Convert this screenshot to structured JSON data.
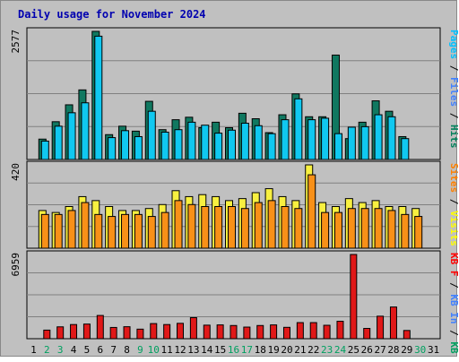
{
  "chart_data": {
    "type": "bar",
    "title": "Daily usage for November 2024",
    "days": [
      "1",
      "2",
      "3",
      "4",
      "5",
      "6",
      "7",
      "8",
      "9",
      "10",
      "11",
      "12",
      "13",
      "14",
      "15",
      "16",
      "17",
      "18",
      "19",
      "20",
      "21",
      "22",
      "23",
      "24",
      "25",
      "26",
      "27",
      "28",
      "29",
      "30",
      "31"
    ],
    "weekend_days": [
      "2",
      "3",
      "9",
      "10",
      "16",
      "17",
      "23",
      "24",
      "30"
    ],
    "panels": [
      {
        "id": "hits_panel",
        "ymax_label": "2577",
        "ymax": 2577,
        "right_label": [
          {
            "text": "Pages",
            "color": "#00c0ff"
          },
          {
            "text": " / ",
            "color": "#000000"
          },
          {
            "text": "Files",
            "color": "#4080ff"
          },
          {
            "text": " / ",
            "color": "#000000"
          },
          {
            "text": "Hits",
            "color": "#00805a"
          }
        ],
        "series": [
          {
            "name": "Hits",
            "color": "#107860",
            "values": [
              null,
              410,
              760,
              1100,
              1400,
              2577,
              500,
              670,
              570,
              1170,
              600,
              800,
              850,
              640,
              750,
              640,
              930,
              820,
              540,
              900,
              1320,
              860,
              860,
              2100,
              420,
              750,
              1180,
              970,
              460,
              null,
              null
            ]
          },
          {
            "name": "Pages",
            "color": "#10c8f0",
            "values": [
              null,
              370,
              670,
              940,
              1140,
              2480,
              440,
              580,
              460,
              970,
              550,
              600,
              750,
              690,
              530,
              590,
              730,
              680,
              520,
              800,
              1220,
              800,
              830,
              520,
              650,
              660,
              900,
              860,
              420,
              null,
              null
            ]
          }
        ]
      },
      {
        "id": "visits_panel",
        "ymax_label": "420",
        "ymax": 420,
        "right_label": [
          {
            "text": "Sites",
            "color": "#ff8000"
          },
          {
            "text": " / ",
            "color": "#000000"
          },
          {
            "text": "Visits",
            "color": "#ffff00"
          }
        ],
        "series": [
          {
            "name": "Visits",
            "color": "#f8f040",
            "values": [
              null,
              190,
              180,
              210,
              260,
              240,
              210,
              190,
              190,
              200,
              220,
              290,
              260,
              270,
              260,
              240,
              250,
              280,
              300,
              260,
              240,
              420,
              230,
              210,
              250,
              230,
              240,
              210,
              210,
              200,
              null
            ]
          },
          {
            "name": "Sites",
            "color": "#f89018",
            "values": [
              null,
              170,
              170,
              190,
              230,
              170,
              160,
              170,
              170,
              160,
              180,
              240,
              220,
              210,
              210,
              210,
              200,
              230,
              240,
              210,
              200,
              370,
              180,
              180,
              200,
              200,
              200,
              190,
              170,
              160,
              null
            ]
          }
        ]
      },
      {
        "id": "kbytes_panel",
        "ymax_label": "6959",
        "ymax": 6959,
        "right_label": [
          {
            "text": "KB F",
            "color": "#ff0000"
          },
          {
            "text": " / ",
            "color": "#000000"
          },
          {
            "text": "KB In",
            "color": "#4080ff"
          },
          {
            "text": " / ",
            "color": "#000000"
          },
          {
            "text": "KB Out",
            "color": "#00a060"
          }
        ],
        "series": [
          {
            "name": "KB F",
            "color": "#e01818",
            "values": [
              null,
              710,
              980,
              1170,
              1210,
              1920,
              930,
              990,
              790,
              1250,
              1170,
              1270,
              1740,
              1120,
              1140,
              1090,
              960,
              1090,
              1140,
              940,
              1330,
              1330,
              1110,
              1440,
              6959,
              850,
              1860,
              2620,
              680,
              null,
              null
            ]
          }
        ]
      }
    ]
  }
}
